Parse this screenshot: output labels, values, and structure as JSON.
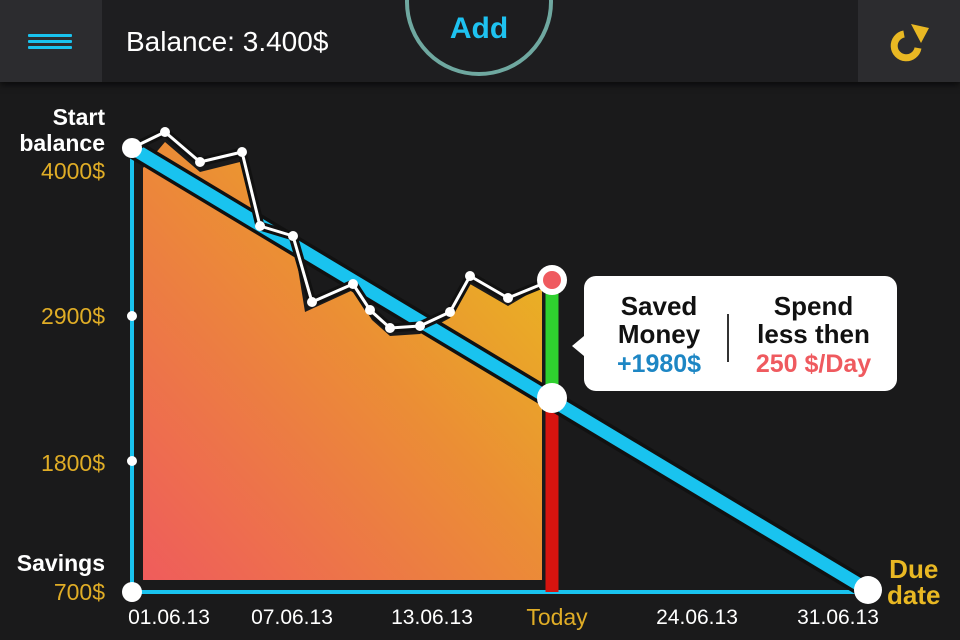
{
  "header": {
    "balance": "Balance: 3.400$",
    "add_label": "Add"
  },
  "y_axis": {
    "start_label_1": "Start",
    "start_label_2": "balance",
    "start_value": "4000$",
    "tick_2900": "2900$",
    "tick_1800": "1800$",
    "savings_label": "Savings",
    "savings_value": "700$"
  },
  "x_axis": {
    "labels": [
      "01.06.13",
      "07.06.13",
      "13.06.13",
      "Today",
      "24.06.13",
      "31.06.13"
    ],
    "due_1": "Due",
    "due_2": "date"
  },
  "popup": {
    "saved_title_1": "Saved",
    "saved_title_2": "Money",
    "saved_value": "+1980$",
    "spend_title_1": "Spend",
    "spend_title_2": "less then",
    "spend_value": "250 $/Day"
  },
  "colors": {
    "accent_cyan": "#19c3ef",
    "gold": "#e0ad26",
    "saved_blue": "#1d86c4",
    "spend_red": "#ef5a5f"
  },
  "icons": {
    "menu": "hamburger-menu-icon",
    "refresh": "refresh-icon"
  }
}
